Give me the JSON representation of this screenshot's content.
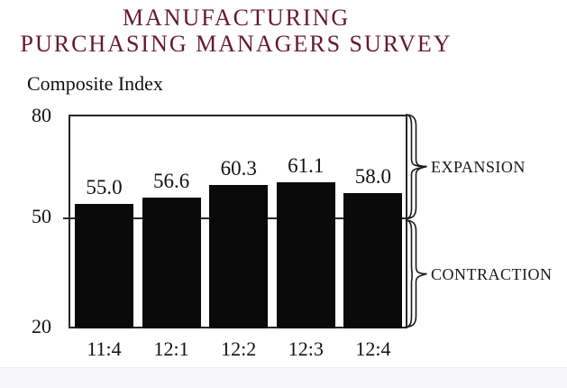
{
  "title": {
    "line1": "MANUFACTURING",
    "line2": "PURCHASING MANAGERS SURVEY"
  },
  "axis_title": "Composite Index",
  "y_ticks": {
    "top": "80",
    "middle": "50",
    "bottom": "20"
  },
  "regions": {
    "expansion": "EXPANSION",
    "contraction": "CONTRACTION"
  },
  "chart_data": {
    "type": "bar",
    "title": "Manufacturing Purchasing Managers Survey",
    "ylabel": "Composite Index",
    "categories": [
      "11:4",
      "12:1",
      "12:2",
      "12:3",
      "12:4"
    ],
    "values": [
      55.0,
      56.6,
      60.3,
      61.1,
      58.0
    ],
    "ylim": [
      20,
      80
    ],
    "yticks": [
      20,
      50,
      80
    ],
    "threshold": 50,
    "threshold_labels": {
      "above": "EXPANSION",
      "below": "CONTRACTION"
    },
    "grid": false,
    "bar_color": "#0a0a0a"
  },
  "colors": {
    "title_maroon": "#66182e",
    "text": "#111111",
    "bar": "#0a0a0a",
    "axis_line": "#262626"
  }
}
